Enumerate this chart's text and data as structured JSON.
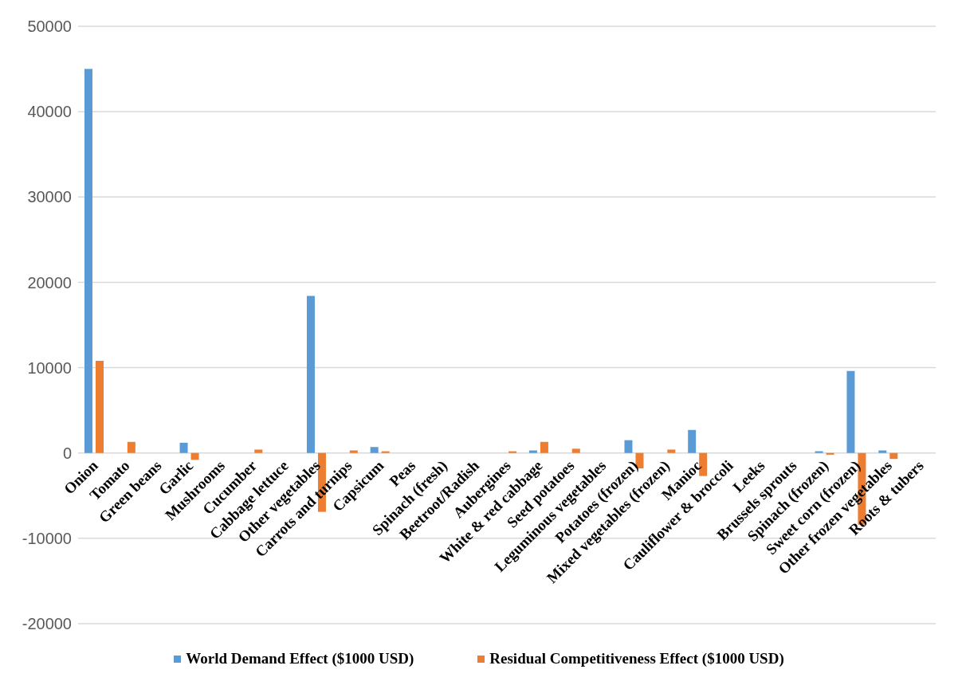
{
  "chart_data": {
    "type": "bar",
    "categories": [
      "Onion",
      "Tomato",
      "Green beans",
      "Garlic",
      "Mushrooms",
      "Cucumber",
      "Cabbage lettuce",
      "Other vegetables",
      "Carrots and turnips",
      "Capsicum",
      "Peas",
      "Spinach (fresh)",
      "Beetroot/Radish",
      "Aubergines",
      "White & red cabbage",
      "Seed potatoes",
      "Leguminous vegetables",
      "Potatoes (frozen)",
      "Mixed vegetables (frozen)",
      "Manioc",
      "Cauliflower & broccoli",
      "Leeks",
      "Brussels sprouts",
      "Spinach (frozen)",
      "Sweet corn (frozen)",
      "Other frozen vegetables",
      "Roots & tubers"
    ],
    "series": [
      {
        "name": "World Demand Effect ($1000 USD)",
        "color": "#5b9bd5",
        "values": [
          45000,
          0,
          0,
          1200,
          0,
          0,
          0,
          18400,
          0,
          700,
          0,
          0,
          0,
          0,
          300,
          0,
          0,
          1500,
          0,
          2700,
          0,
          0,
          0,
          200,
          9600,
          300,
          0
        ]
      },
      {
        "name": "Residual Competitiveness Effect ($1000 USD)",
        "color": "#ed7d31",
        "values": [
          10800,
          1300,
          0,
          -800,
          0,
          400,
          0,
          -6900,
          300,
          200,
          0,
          0,
          0,
          200,
          1300,
          500,
          0,
          -1800,
          400,
          -2700,
          0,
          0,
          0,
          -200,
          -8400,
          -700,
          0
        ]
      }
    ],
    "ylim": [
      -20000,
      50000
    ],
    "yticks": [
      -20000,
      -10000,
      0,
      10000,
      20000,
      30000,
      40000,
      50000
    ],
    "grid": "y",
    "legend": "bottom"
  }
}
